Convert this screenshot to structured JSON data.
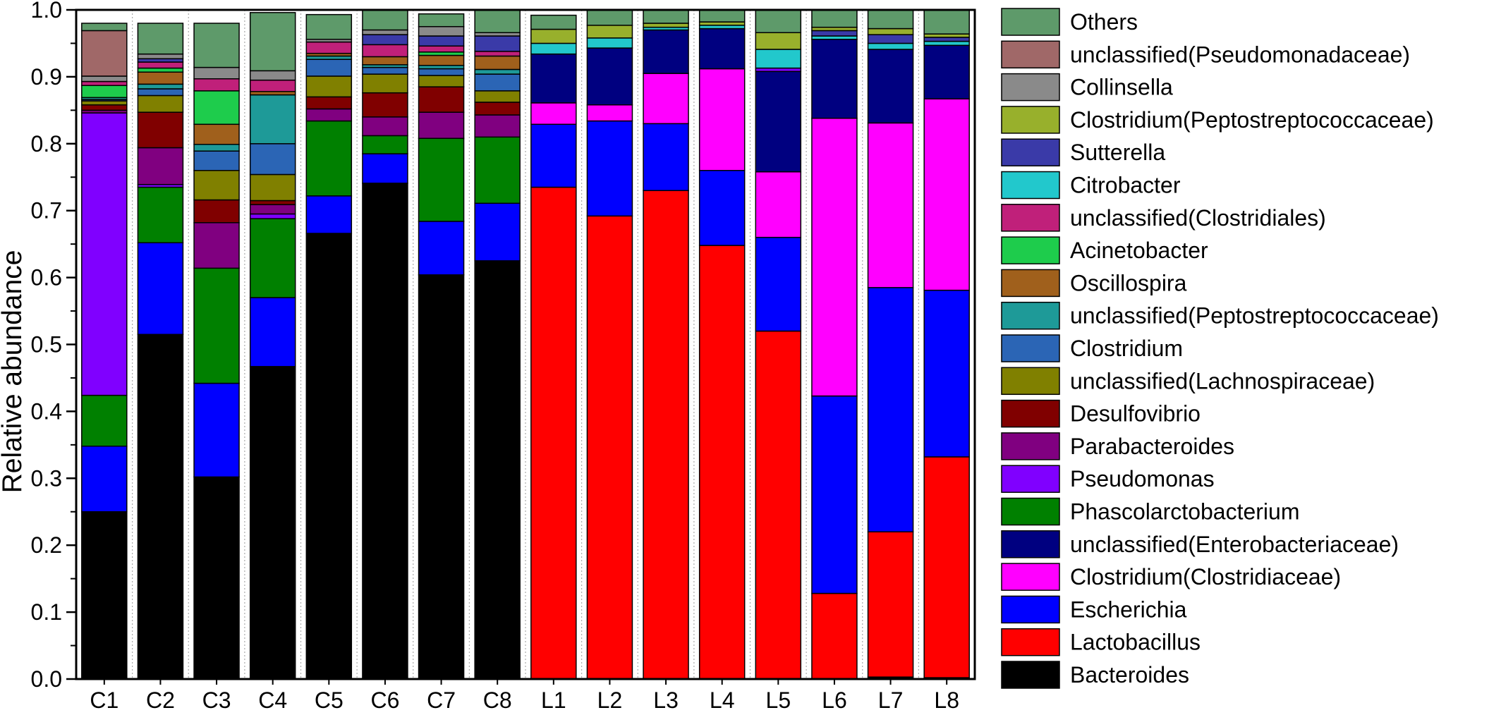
{
  "chart_data": {
    "type": "bar",
    "stacked": true,
    "ylabel": "Relative abundance",
    "xlabel": "",
    "ylim": [
      0,
      1.0
    ],
    "yticks": [
      "0.0",
      "0.1",
      "0.2",
      "0.3",
      "0.4",
      "0.5",
      "0.6",
      "0.7",
      "0.8",
      "0.9",
      "1.0"
    ],
    "legend_position": "right",
    "categories": [
      "C1",
      "C2",
      "C3",
      "C4",
      "C5",
      "C6",
      "C7",
      "C8",
      "L1",
      "L2",
      "L3",
      "L4",
      "L5",
      "L6",
      "L7",
      "L8"
    ],
    "series": [
      {
        "name": "Bacteroides",
        "color": "#000000",
        "values": [
          0.25,
          0.515,
          0.302,
          0.467,
          0.666,
          0.741,
          0.604,
          0.625,
          0.0,
          0.0,
          0.0,
          0.0,
          0.0,
          0.0,
          0.003,
          0.002
        ]
      },
      {
        "name": "Lactobacillus",
        "color": "#ff0000",
        "values": [
          0.0,
          0.0,
          0.0,
          0.0,
          0.0,
          0.0,
          0.0,
          0.0,
          0.735,
          0.692,
          0.73,
          0.648,
          0.52,
          0.128,
          0.217,
          0.33
        ]
      },
      {
        "name": "Escherichia",
        "color": "#0000ff",
        "values": [
          0.098,
          0.137,
          0.14,
          0.103,
          0.056,
          0.044,
          0.08,
          0.086,
          0.094,
          0.142,
          0.1,
          0.112,
          0.14,
          0.295,
          0.365,
          0.249
        ]
      },
      {
        "name": "Clostridium(Clostridiaceae)",
        "color": "#ff00ff",
        "values": [
          0.0,
          0.0,
          0.0,
          0.0,
          0.0,
          0.0,
          0.0,
          0.0,
          0.032,
          0.024,
          0.075,
          0.152,
          0.098,
          0.415,
          0.246,
          0.286
        ]
      },
      {
        "name": "unclassified(Enterobacteriaceae)",
        "color": "#000080",
        "values": [
          0.0,
          0.0,
          0.0,
          0.0,
          0.0,
          0.0,
          0.0,
          0.0,
          0.073,
          0.085,
          0.065,
          0.06,
          0.15,
          0.118,
          0.11,
          0.08
        ]
      },
      {
        "name": "Phascolarctobacterium",
        "color": "#008000",
        "values": [
          0.076,
          0.083,
          0.172,
          0.118,
          0.112,
          0.027,
          0.124,
          0.099,
          0.0,
          0.0,
          0.0,
          0.0,
          0.0,
          0.0,
          0.0,
          0.0
        ]
      },
      {
        "name": "Pseudomonas",
        "color": "#8000ff",
        "values": [
          0.422,
          0.004,
          0.0,
          0.007,
          0.0,
          0.0,
          0.0,
          0.0,
          0.0,
          0.0,
          0.0,
          0.0,
          0.005,
          0.0,
          0.0,
          0.0
        ]
      },
      {
        "name": "Parabacteroides",
        "color": "#800080",
        "values": [
          0.004,
          0.055,
          0.068,
          0.014,
          0.018,
          0.028,
          0.039,
          0.033,
          0.0,
          0.0,
          0.0,
          0.0,
          0.0,
          0.0,
          0.0,
          0.0
        ]
      },
      {
        "name": "Desulfovibrio",
        "color": "#800000",
        "values": [
          0.008,
          0.053,
          0.034,
          0.006,
          0.018,
          0.036,
          0.038,
          0.019,
          0.0,
          0.0,
          0.0,
          0.0,
          0.0,
          0.0,
          0.0,
          0.0
        ]
      },
      {
        "name": "unclassified(Lachnospiraceae)",
        "color": "#808000",
        "values": [
          0.006,
          0.025,
          0.044,
          0.039,
          0.031,
          0.028,
          0.017,
          0.017,
          0.0,
          0.0,
          0.0,
          0.0,
          0.0,
          0.0,
          0.0,
          0.0
        ]
      },
      {
        "name": "Clostridium",
        "color": "#2b65b5",
        "values": [
          0.002,
          0.01,
          0.029,
          0.046,
          0.025,
          0.01,
          0.01,
          0.025,
          0.0,
          0.0,
          0.0,
          0.0,
          0.0,
          0.0,
          0.0,
          0.0
        ]
      },
      {
        "name": "unclassified(Peptostreptococcaceae)",
        "color": "#1e9a98",
        "values": [
          0.003,
          0.007,
          0.01,
          0.073,
          0.005,
          0.004,
          0.005,
          0.007,
          0.0,
          0.0,
          0.0,
          0.0,
          0.0,
          0.0,
          0.0,
          0.0
        ]
      },
      {
        "name": "Oscillospira",
        "color": "#a0601c",
        "values": [
          0.0,
          0.018,
          0.03,
          0.005,
          0.004,
          0.012,
          0.015,
          0.02,
          0.0,
          0.0,
          0.0,
          0.0,
          0.0,
          0.0,
          0.0,
          0.0
        ]
      },
      {
        "name": "Acinetobacter",
        "color": "#1ecc4c",
        "values": [
          0.018,
          0.006,
          0.05,
          0.0,
          0.0,
          0.0,
          0.005,
          0.0,
          0.0,
          0.0,
          0.0,
          0.0,
          0.0,
          0.0,
          0.0,
          0.0
        ]
      },
      {
        "name": "unclassified(Clostridiales)",
        "color": "#c0207a",
        "values": [
          0.006,
          0.009,
          0.018,
          0.017,
          0.017,
          0.018,
          0.009,
          0.007,
          0.0,
          0.0,
          0.0,
          0.0,
          0.0,
          0.0,
          0.0,
          0.0
        ]
      },
      {
        "name": "Citrobacter",
        "color": "#22c8cc",
        "values": [
          0.0,
          0.0,
          0.0,
          0.0,
          0.0,
          0.0,
          0.0,
          0.0,
          0.016,
          0.015,
          0.004,
          0.005,
          0.028,
          0.005,
          0.009,
          0.006
        ]
      },
      {
        "name": "Sutterella",
        "color": "#3a3aa8",
        "values": [
          0.0,
          0.005,
          0.0,
          0.0,
          0.0,
          0.015,
          0.015,
          0.023,
          0.0,
          0.0,
          0.0,
          0.0,
          0.0,
          0.008,
          0.013,
          0.006
        ]
      },
      {
        "name": "Clostridium(Peptostreptococcaceae)",
        "color": "#98b02c",
        "values": [
          0.0,
          0.0,
          0.0,
          0.0,
          0.0,
          0.0,
          0.0,
          0.0,
          0.021,
          0.019,
          0.006,
          0.005,
          0.025,
          0.005,
          0.009,
          0.005
        ]
      },
      {
        "name": "Collinsella",
        "color": "#8a8a8a",
        "values": [
          0.008,
          0.007,
          0.017,
          0.014,
          0.004,
          0.007,
          0.014,
          0.005,
          0.0,
          0.0,
          0.0,
          0.0,
          0.0,
          0.0,
          0.0,
          0.0
        ]
      },
      {
        "name": "unclassified(Pseudomonadaceae)",
        "color": "#a06868",
        "values": [
          0.068,
          0.0,
          0.0,
          0.0,
          0.0,
          0.0,
          0.0,
          0.0,
          0.0,
          0.0,
          0.0,
          0.0,
          0.0,
          0.0,
          0.0,
          0.0
        ]
      },
      {
        "name": "Others",
        "color": "#5e9a6a",
        "values": [
          0.011,
          0.046,
          0.066,
          0.087,
          0.037,
          0.03,
          0.019,
          0.034,
          0.021,
          0.023,
          0.02,
          0.018,
          0.034,
          0.026,
          0.028,
          0.036
        ]
      }
    ]
  }
}
